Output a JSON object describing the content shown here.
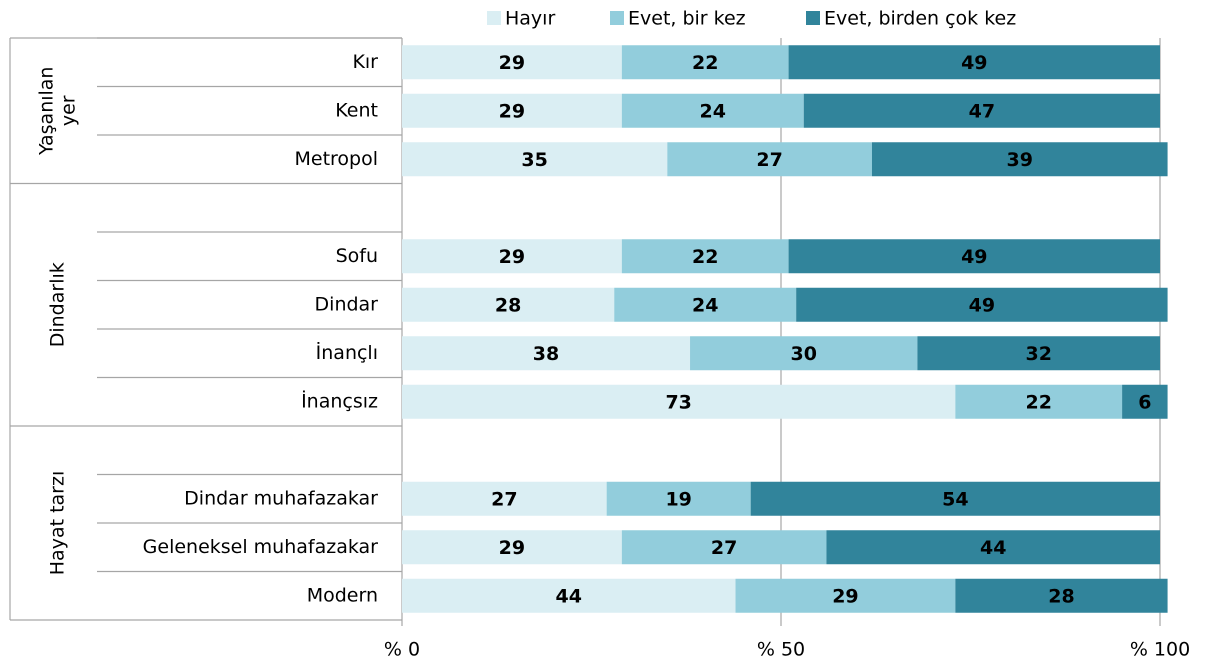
{
  "chart_data": {
    "type": "stacked_bar_horizontal",
    "categories": [
      "Kır",
      "Kent",
      "Metropol",
      null,
      "Sofu",
      "Dindar",
      "İnançlı",
      "İnançsız",
      null,
      "Dindar muhafazakar",
      "Geleneksel muhafazakar",
      "Modern"
    ],
    "groups": [
      {
        "label_lines": [
          "Yaşanılan",
          "yer"
        ]
      },
      {
        "label_lines": [
          "Dindarlık"
        ]
      },
      {
        "label_lines": [
          "Hayat tarzı"
        ]
      }
    ],
    "series": [
      {
        "name": "Hayır",
        "color": "#daeef3",
        "values": [
          29,
          29,
          35,
          null,
          29,
          28,
          38,
          73,
          null,
          27,
          29,
          44
        ]
      },
      {
        "name": "Evet, bir kez",
        "color": "#92cddc",
        "values": [
          22,
          24,
          27,
          null,
          22,
          24,
          30,
          22,
          null,
          19,
          27,
          29
        ]
      },
      {
        "name": "Evet, birden çok kez",
        "color": "#31849b",
        "values": [
          49,
          47,
          39,
          null,
          49,
          49,
          32,
          6,
          null,
          54,
          44,
          28
        ]
      }
    ],
    "xlim": [
      0,
      100
    ],
    "xticks": [
      {
        "value": 0,
        "label": "% 0"
      },
      {
        "value": 50,
        "label": "% 50"
      },
      {
        "value": 100,
        "label": "% 100"
      }
    ],
    "legend": "top"
  }
}
